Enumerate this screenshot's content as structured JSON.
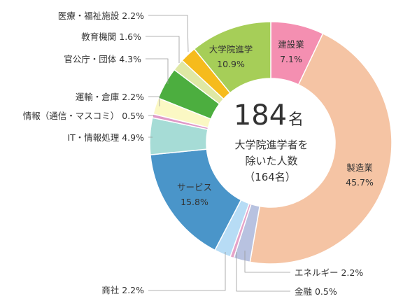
{
  "chart_data": {
    "type": "pie",
    "donut": true,
    "unit": "%",
    "center": {
      "number": "184",
      "unit": "名",
      "line1": "大学院進学者を",
      "line2": "除いた人数",
      "line3": "（164名）"
    },
    "slices": [
      {
        "key": "construction",
        "label": "建設業",
        "value": 7.1,
        "color": "#f48fb1"
      },
      {
        "key": "manufacturing",
        "label": "製造業",
        "value": 45.7,
        "color": "#f5c4a4"
      },
      {
        "key": "energy",
        "label": "エネルギー",
        "value": 2.2,
        "color": "#b8c2e0"
      },
      {
        "key": "finance",
        "label": "金融",
        "value": 0.5,
        "color": "#e5a3c8"
      },
      {
        "key": "trading",
        "label": "商社",
        "value": 2.2,
        "color": "#b7dcf5"
      },
      {
        "key": "service",
        "label": "サービス",
        "value": 15.8,
        "color": "#4a95c9"
      },
      {
        "key": "it",
        "label": "IT・情報処理",
        "value": 4.9,
        "color": "#a6dcd6"
      },
      {
        "key": "info_comm",
        "label": "情報（通信・マスコミ）",
        "value": 0.5,
        "color": "#e09ac8"
      },
      {
        "key": "transport",
        "label": "運輸・倉庫",
        "value": 2.2,
        "color": "#fbf8c4"
      },
      {
        "key": "government",
        "label": "官公庁・団体",
        "value": 4.3,
        "color": "#4cae3f"
      },
      {
        "key": "education",
        "label": "教育機関",
        "value": 1.6,
        "color": "#dfe8a4"
      },
      {
        "key": "medical",
        "label": "医療・福祉施設",
        "value": 2.2,
        "color": "#f6bb1c"
      },
      {
        "key": "grad_school",
        "label": "大学院進学",
        "value": 10.9,
        "color": "#a6ce58"
      }
    ]
  }
}
